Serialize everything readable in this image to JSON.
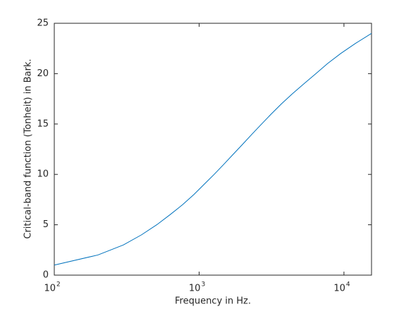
{
  "chart_data": {
    "type": "line",
    "x_label": "Frequency in Hz.",
    "y_label": "Critical-band function (Tonheit) in Bark.",
    "x_scale": "log",
    "x": [
      100,
      200,
      300,
      400,
      510,
      630,
      770,
      920,
      1080,
      1270,
      1480,
      1720,
      2000,
      2320,
      2700,
      3150,
      3700,
      4400,
      5300,
      6400,
      7700,
      9500,
      12000,
      15500
    ],
    "series": [
      {
        "color": "#0072bd",
        "values": [
          1,
          2,
          3,
          4,
          5,
          6,
          7,
          8,
          9,
          10,
          11,
          12,
          13,
          14,
          15,
          16,
          17,
          18,
          19,
          20,
          21,
          22,
          23,
          24
        ]
      }
    ],
    "xlim": [
      100,
      15500
    ],
    "xticks": [
      {
        "value": 100,
        "label": "10",
        "exponent": "2"
      },
      {
        "value": 1000,
        "label": "10",
        "exponent": "3"
      },
      {
        "value": 10000,
        "label": "10",
        "exponent": "4"
      }
    ],
    "ylim": [
      0,
      25
    ],
    "yticks": [
      0,
      5,
      10,
      15,
      20,
      25
    ]
  }
}
